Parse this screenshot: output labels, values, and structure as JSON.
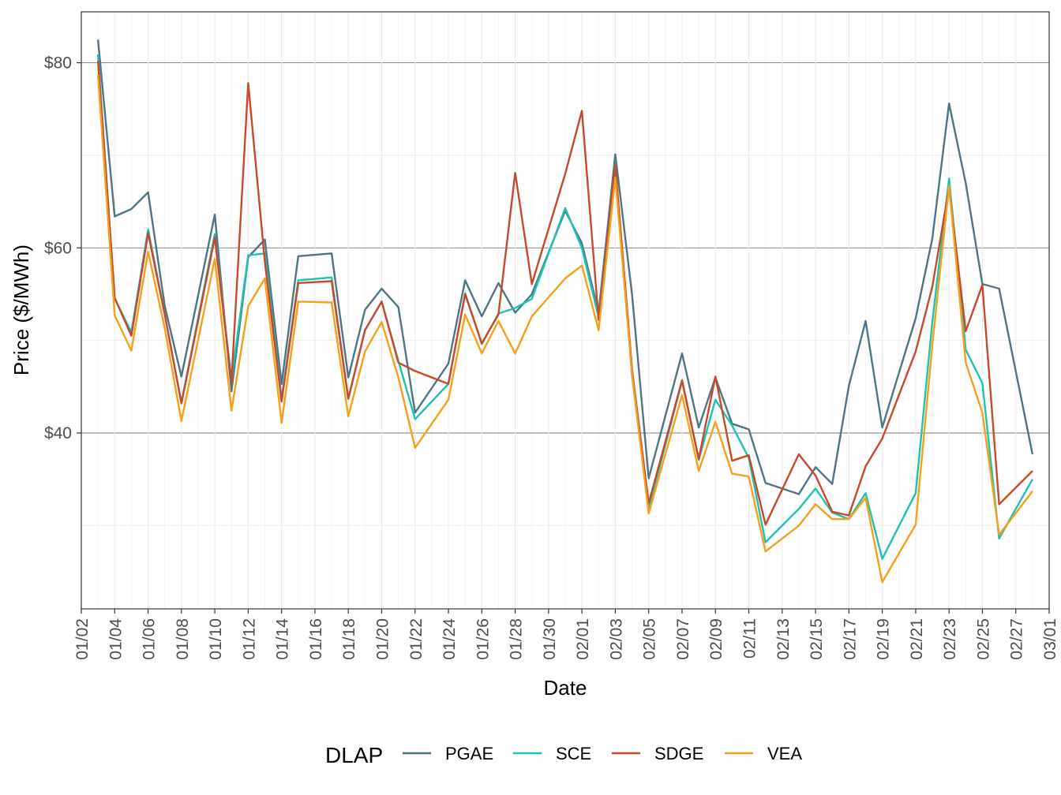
{
  "chart_data": {
    "type": "line",
    "xlabel": "Date",
    "ylabel": "Price ($/MWh)",
    "x_tick_labels": [
      "01/02",
      "01/04",
      "01/06",
      "01/08",
      "01/10",
      "01/12",
      "01/14",
      "01/16",
      "01/18",
      "01/20",
      "01/22",
      "01/24",
      "01/26",
      "01/28",
      "01/30",
      "02/01",
      "02/03",
      "02/05",
      "02/07",
      "02/09",
      "02/11",
      "02/13",
      "02/15",
      "02/17",
      "02/19",
      "02/21",
      "02/23",
      "02/25",
      "02/27",
      "03/01"
    ],
    "y_ticks": [
      40,
      60,
      80
    ],
    "y_tick_labels": [
      "$40",
      "$60",
      "$80"
    ],
    "ylim": [
      21,
      85.5
    ],
    "x_range_days": [
      0,
      58
    ],
    "grid": true,
    "legend": {
      "title": "DLAP",
      "position": "bottom"
    },
    "x": [
      "01/03",
      "01/04",
      "01/05",
      "01/06",
      "01/07",
      "01/08",
      "01/10",
      "01/11",
      "01/12",
      "01/13",
      "01/14",
      "01/15",
      "01/17",
      "01/18",
      "01/19",
      "01/20",
      "01/21",
      "01/22",
      "01/24",
      "01/25",
      "01/26",
      "01/27",
      "01/28",
      "01/29",
      "01/31",
      "02/01",
      "02/02",
      "02/03",
      "02/04",
      "02/05",
      "02/07",
      "02/08",
      "02/09",
      "02/10",
      "02/11",
      "02/12",
      "02/14",
      "02/15",
      "02/16",
      "02/17",
      "02/18",
      "02/19",
      "02/21",
      "02/22",
      "02/23",
      "02/24",
      "02/25",
      "02/26",
      "02/28"
    ],
    "series": [
      {
        "name": "PGAE",
        "color": "#4e7585",
        "values": [
          82.5,
          63.4,
          64.2,
          66.0,
          53.7,
          46.1,
          63.6,
          44.5,
          59.0,
          60.9,
          45.3,
          59.1,
          59.4,
          46.0,
          53.3,
          55.6,
          53.6,
          42.2,
          47.5,
          56.5,
          52.6,
          56.2,
          53.0,
          55.0,
          64.0,
          60.5,
          53.0,
          70.1,
          55.0,
          35.1,
          48.6,
          40.6,
          46.0,
          41.0,
          40.4,
          34.6,
          33.4,
          36.3,
          34.5,
          45.1,
          52.1,
          40.6,
          52.4,
          61.0,
          75.6,
          67.0,
          56.1,
          55.6,
          37.7
        ]
      },
      {
        "name": "SCE",
        "color": "#1ec2b3",
        "values": [
          80.9,
          54.5,
          50.9,
          62.0,
          52.8,
          43.3,
          61.5,
          45.7,
          59.2,
          59.4,
          43.7,
          56.5,
          56.8,
          43.7,
          51.1,
          54.2,
          47.8,
          41.5,
          45.3,
          55.1,
          49.6,
          52.9,
          53.5,
          54.5,
          64.3,
          60.0,
          52.5,
          68.7,
          46.2,
          31.8,
          45.6,
          37.1,
          43.6,
          40.8,
          37.3,
          28.2,
          31.8,
          34.0,
          31.4,
          30.7,
          33.5,
          26.4,
          33.5,
          52.0,
          67.5,
          49.0,
          45.4,
          28.6,
          35.0
        ]
      },
      {
        "name": "SDGE",
        "color": "#c9482a",
        "values": [
          80.2,
          54.6,
          50.5,
          61.6,
          52.8,
          43.2,
          61.1,
          45.5,
          77.8,
          58.5,
          43.4,
          56.2,
          56.4,
          43.7,
          51.1,
          54.2,
          47.6,
          46.7,
          45.3,
          55.0,
          49.7,
          52.8,
          68.1,
          56.1,
          68.0,
          74.8,
          52.2,
          68.9,
          46.9,
          32.4,
          45.7,
          37.2,
          46.1,
          37.0,
          37.6,
          30.1,
          37.7,
          35.4,
          31.5,
          31.1,
          36.4,
          39.4,
          48.8,
          55.8,
          66.5,
          51.0,
          56.0,
          32.3,
          35.9
        ]
      },
      {
        "name": "VEA",
        "color": "#f6a01a",
        "values": [
          78.7,
          52.7,
          48.9,
          59.6,
          51.3,
          41.3,
          58.8,
          42.4,
          53.7,
          56.7,
          41.1,
          54.2,
          54.1,
          41.8,
          48.8,
          52.0,
          46.0,
          38.4,
          43.6,
          52.8,
          48.6,
          52.1,
          48.6,
          52.6,
          56.7,
          58.1,
          51.1,
          67.6,
          46.4,
          31.3,
          44.1,
          35.9,
          41.2,
          35.6,
          35.3,
          27.2,
          30.0,
          32.3,
          30.7,
          30.7,
          33.0,
          23.9,
          30.1,
          49.5,
          66.7,
          47.6,
          42.2,
          29.0,
          33.7
        ]
      }
    ]
  }
}
